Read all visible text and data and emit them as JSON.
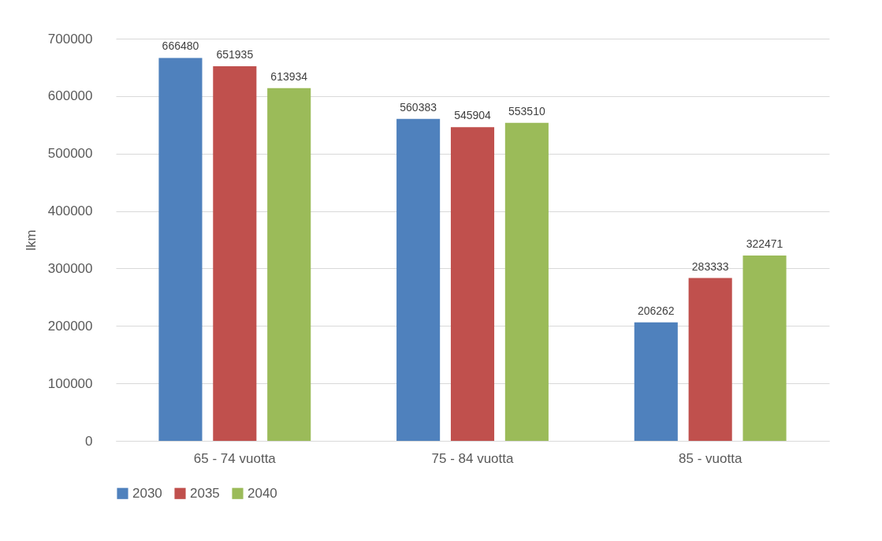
{
  "chart_data": {
    "type": "bar",
    "ylabel": "lkm",
    "categories": [
      "65 - 74 vuotta",
      "75 - 84 vuotta",
      "85 - vuotta"
    ],
    "series": [
      {
        "name": "2030",
        "color": "#4f81bd",
        "values": [
          666480,
          560383,
          206262
        ]
      },
      {
        "name": "2035",
        "color": "#c0504d",
        "values": [
          651935,
          545904,
          283333
        ]
      },
      {
        "name": "2040",
        "color": "#9bbb59",
        "values": [
          613934,
          553510,
          322471
        ]
      }
    ],
    "ylim": [
      0,
      700000
    ],
    "yticks": [
      0,
      100000,
      200000,
      300000,
      400000,
      500000,
      600000,
      700000
    ],
    "grid": "y",
    "legend": "bottom",
    "data_labels": true
  }
}
